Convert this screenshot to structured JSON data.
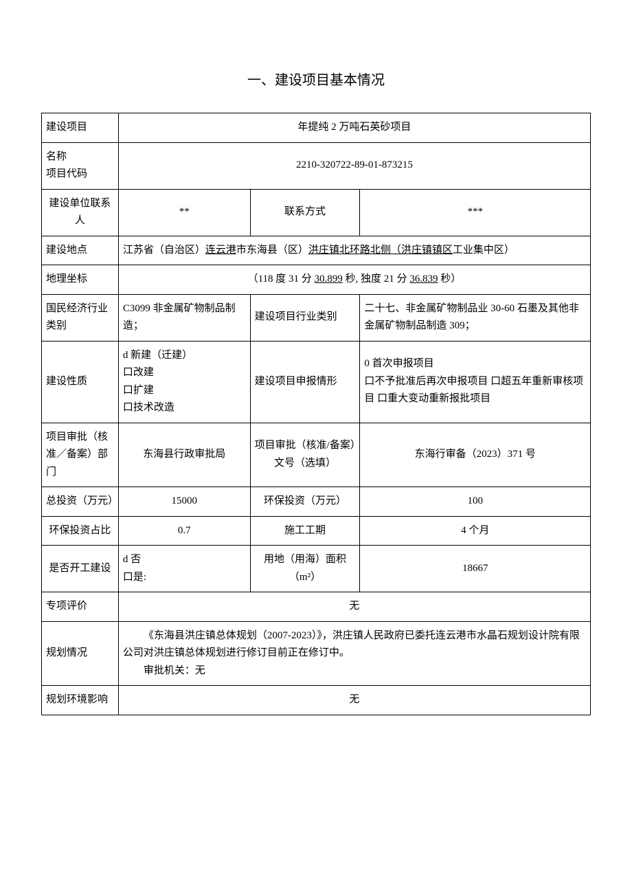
{
  "title": "一、建设项目基本情况",
  "rows": {
    "project_name_label": "建设项目",
    "project_name": "年提纯 2 万吨石英砂项目",
    "name_label": "名称",
    "code_label": "项目代码",
    "code": "2210-320722-89-01-873215",
    "contact_label": "建设单位联系人",
    "contact": "**",
    "contact_way_label": "联系方式",
    "contact_way": "***",
    "addr_label": "建设地点",
    "addr_prefix": "江苏省（自治区）",
    "addr_city": "连云港",
    "addr_mid": "市东海县（区）",
    "addr_town": "洪庄镇北环路北侧（洪庄镇镇区",
    "addr_suffix": "工业集中区）",
    "coord_label": "地理坐标",
    "coord_prefix": "（118 度 31 分 ",
    "coord_sec1": "30.899",
    "coord_mid": " 秒, 独度 21 分 ",
    "coord_sec2": "36.839",
    "coord_suffix": " 秒）",
    "industry_code_label": "国民经济行业类别",
    "industry_code": "C3099 非金属矿物制品制造；",
    "industry_cat_label": "建设项目行业类别",
    "industry_cat": "二十七、非金属矿物制品业 30-60 石墨及其他非金属矿物制品制造 309；",
    "nature_label": "建设性质",
    "nature_opts": [
      "d 新建（迁建）",
      "口改建",
      "口扩建",
      "口技术改造"
    ],
    "declare_label": "建设项目申报情形",
    "declare_opts": "0 首次申报项目\n口不予批准后再次申报项目 口超五年重新审核项目 口重大变动重新报批项目",
    "approval_dept_label": "项目审批（核准／备案）部门",
    "approval_dept": "东海县行政审批局",
    "approval_no_label": "项目审批（核准/备案）文号（选填）",
    "approval_no": "东海行审备（2023）371 号",
    "invest_label": "总投资（万元）",
    "invest": "15000",
    "env_invest_label": "环保投资（万元）",
    "env_invest": "100",
    "env_ratio_label": "环保投资占比",
    "env_ratio": "0.7",
    "period_label": "施工工期",
    "period": "4 个月",
    "started_label": "是否开工建设",
    "started": "d 否\n口是:",
    "land_label": "用地（用海）面积（m²）",
    "land": "18667",
    "special_label": "专项评价",
    "special": "无",
    "plan_label": "规划情况",
    "plan_text": "《东海县洪庄镇总体规划（2007-2023）》，洪庄镇人民政府已委托连云港市水晶石规划设计院有限公司对洪庄镇总体规划进行修订目前正在修订中。",
    "plan_auth": "审批机关：无",
    "env_plan_label": "规划环境影响",
    "env_plan": "无"
  }
}
